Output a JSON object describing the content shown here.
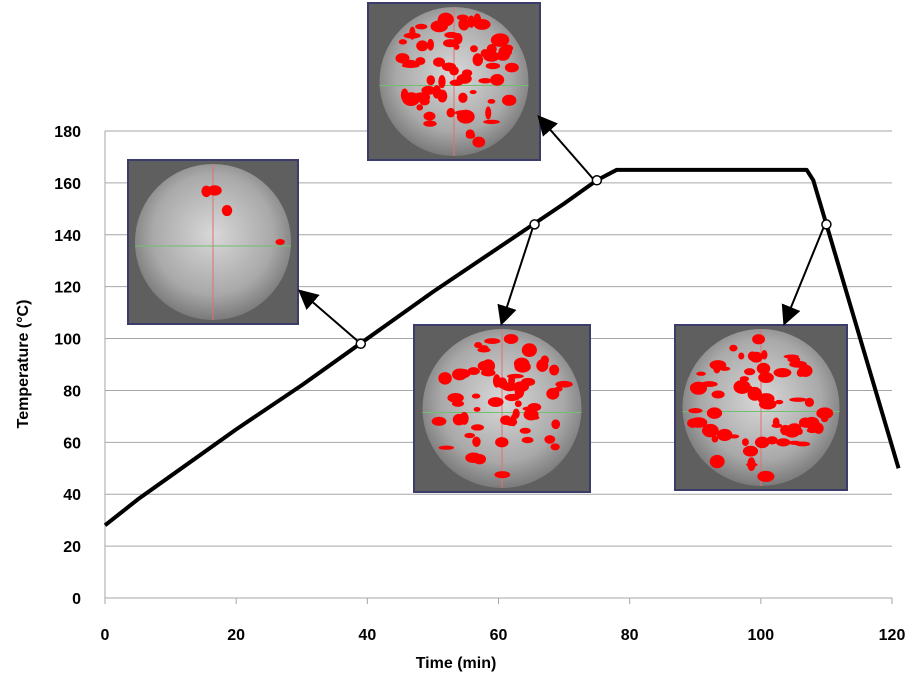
{
  "chart_data": {
    "type": "line",
    "x_label": "Time (min)",
    "y_label": "Temperature (°C)",
    "x": [
      0,
      5,
      10,
      20,
      30,
      40,
      50,
      60,
      70,
      75,
      78,
      80,
      107,
      108,
      110,
      121
    ],
    "values": [
      28,
      38,
      47,
      65,
      82,
      100,
      118,
      135,
      152,
      161,
      165,
      165,
      165,
      161,
      144,
      50
    ],
    "color": "#000000",
    "highlights": {
      "x": [
        39,
        75,
        65.5,
        110
      ],
      "values": [
        98,
        161,
        144,
        144
      ]
    },
    "xlim": [
      0,
      120
    ],
    "xticks": [
      0,
      20,
      40,
      60,
      80,
      100,
      120
    ],
    "ylim": [
      0,
      180
    ],
    "yticks": [
      0,
      20,
      40,
      60,
      80,
      100,
      120,
      140,
      160,
      180
    ],
    "grid": true
  }
}
